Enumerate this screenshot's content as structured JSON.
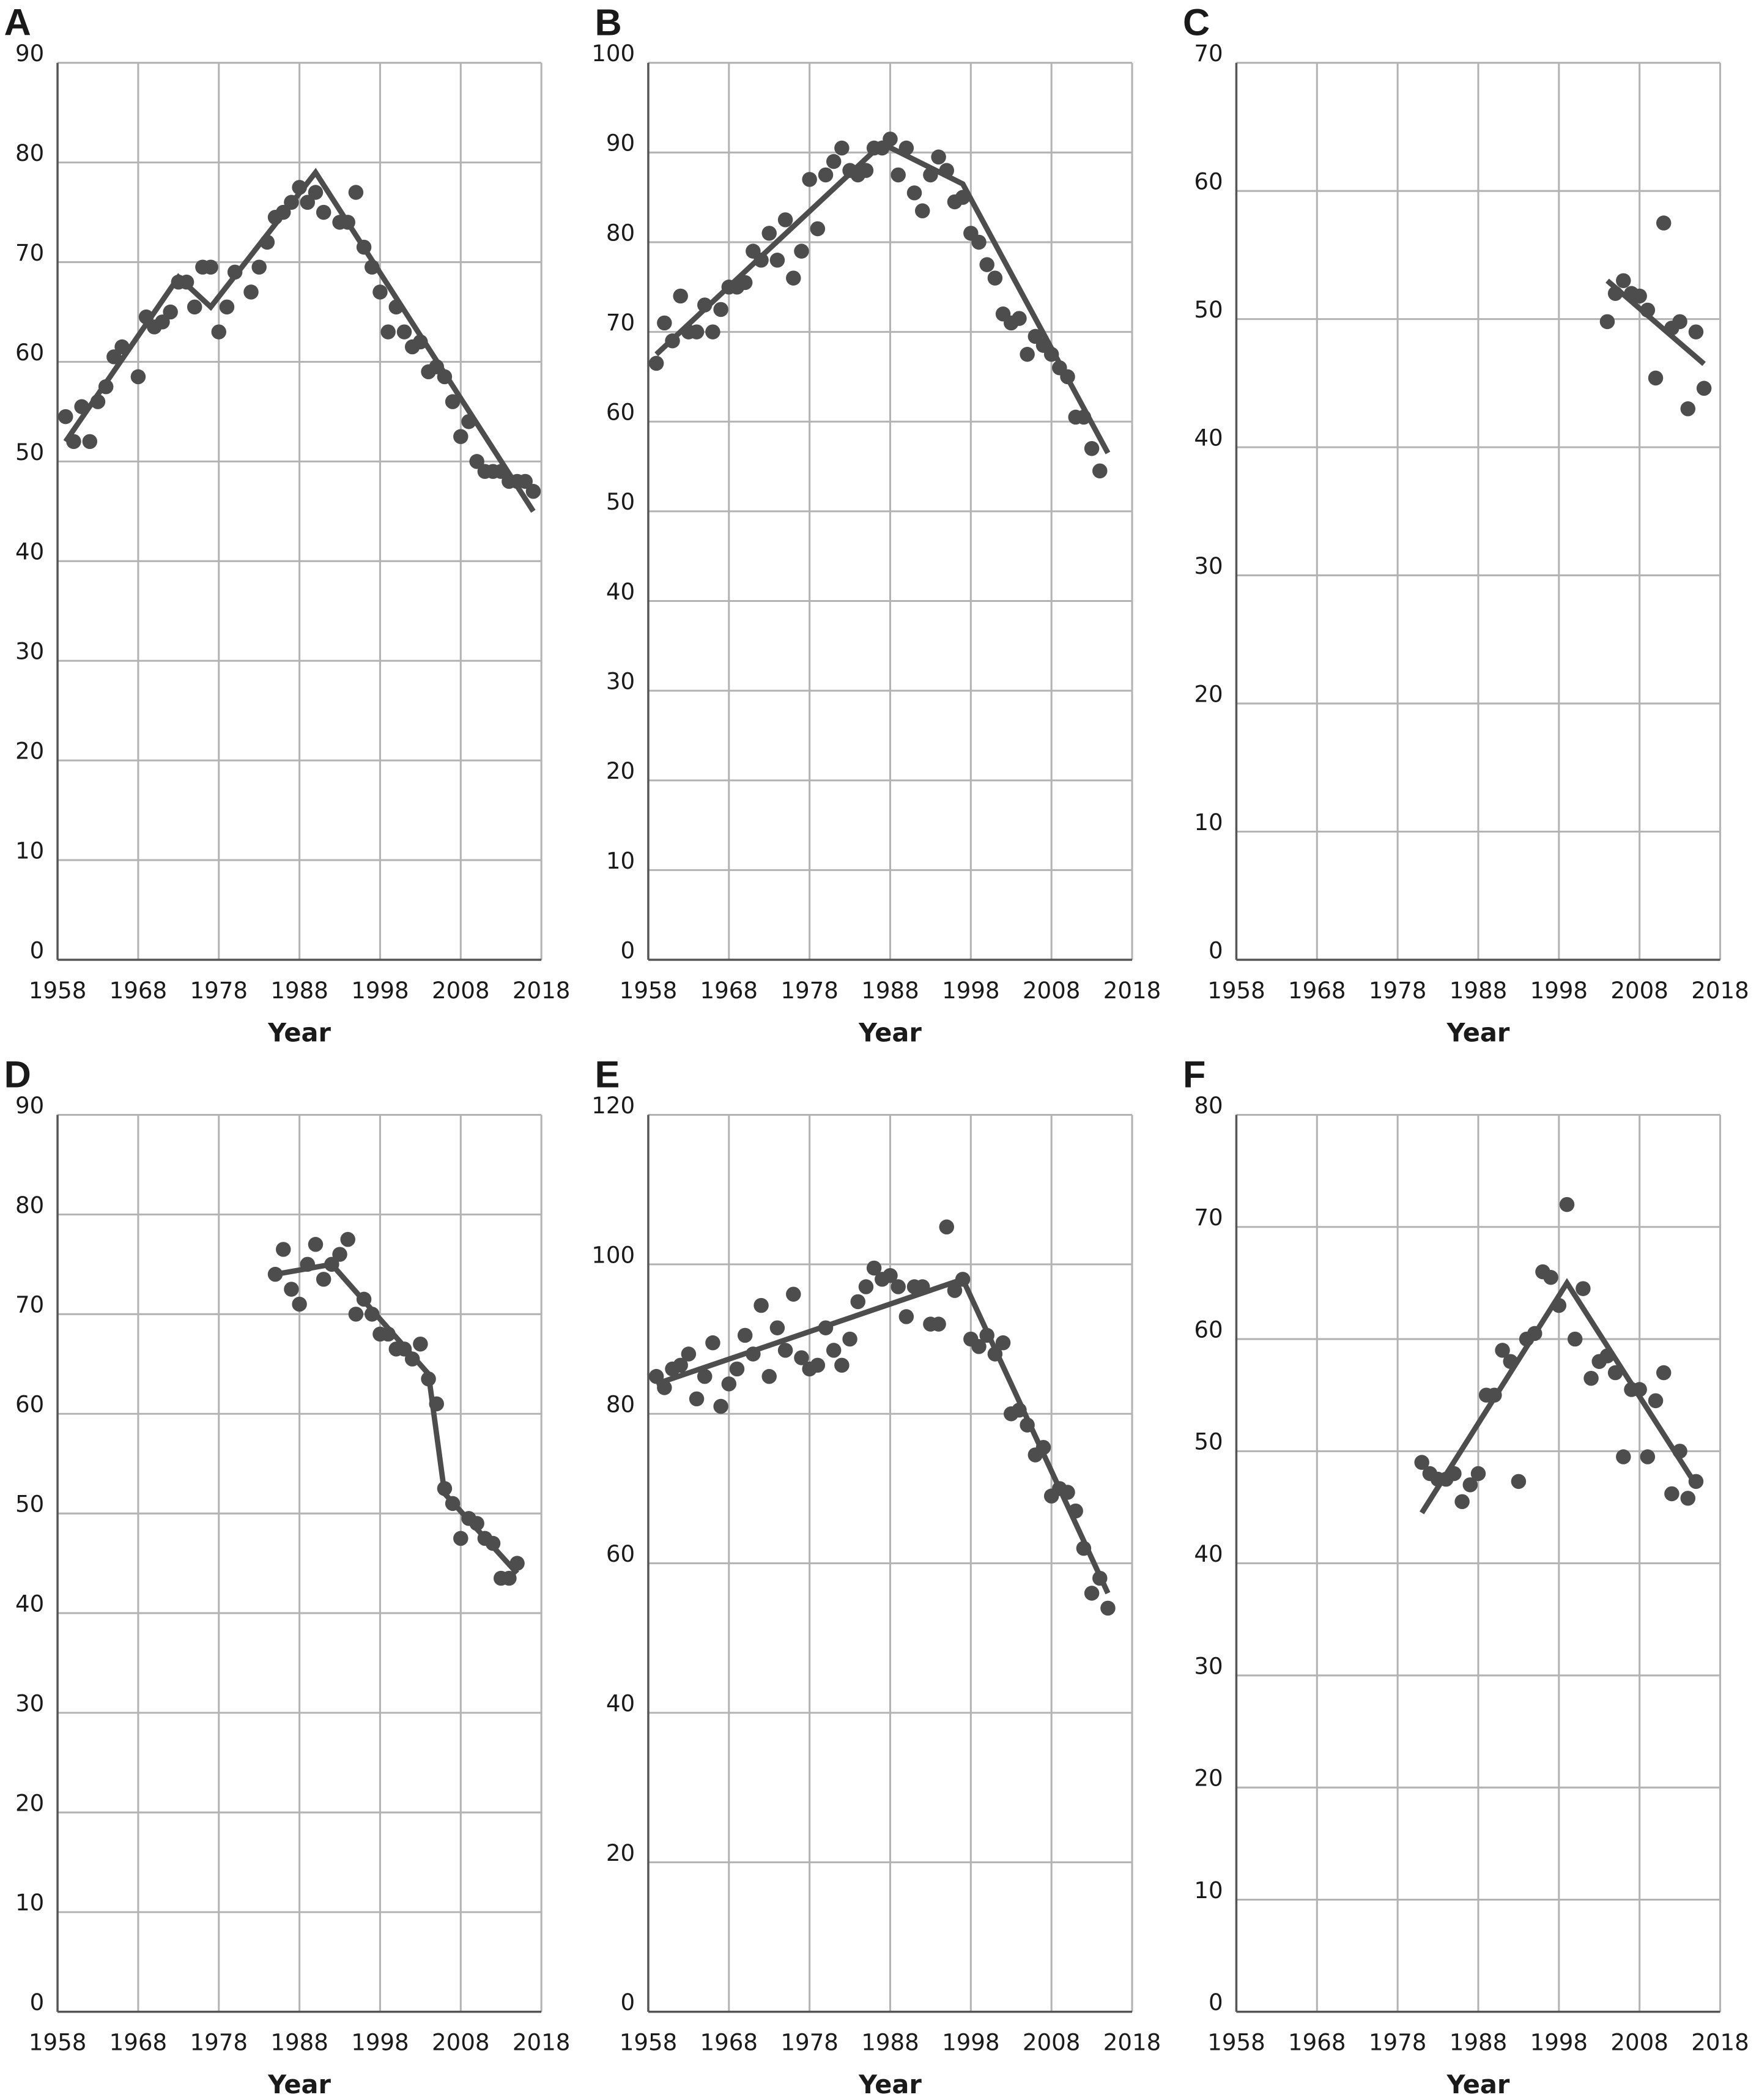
{
  "chart_data": [
    {
      "type": "scatter",
      "title": "A",
      "x_label": "Year",
      "xlim": [
        1958,
        2018
      ],
      "xticks": [
        1958,
        1968,
        1978,
        1988,
        1998,
        2008,
        2018
      ],
      "ylim": [
        0,
        90
      ],
      "yticks": [
        0,
        10,
        20,
        30,
        40,
        50,
        60,
        70,
        80,
        90
      ],
      "grid": true,
      "series": [
        {
          "mode": "markers",
          "color": "#4d4d4d",
          "x": [
            1959,
            1960,
            1961,
            1962,
            1963,
            1964,
            1965,
            1966,
            1968,
            1969,
            1970,
            1971,
            1972,
            1973,
            1974,
            1975,
            1976,
            1977,
            1978,
            1979,
            1980,
            1982,
            1983,
            1984,
            1985,
            1986,
            1987,
            1988,
            1989,
            1990,
            1991,
            1993,
            1994,
            1995,
            1996,
            1997,
            1998,
            1999,
            2000,
            2001,
            2002,
            2003,
            2004,
            2005,
            2006,
            2007,
            2008,
            2009,
            2010,
            2011,
            2012,
            2013,
            2014,
            2015,
            2016,
            2017
          ],
          "values": [
            54.5,
            52,
            55.5,
            52,
            56,
            57.5,
            60.5,
            61.5,
            58.5,
            64.5,
            63.5,
            64,
            65,
            68,
            68,
            65.5,
            69.5,
            69.5,
            63,
            65.5,
            69,
            67,
            69.5,
            72,
            74.5,
            75,
            76,
            77.5,
            76,
            77,
            75,
            74,
            74,
            77,
            71.5,
            69.5,
            67,
            63,
            65.5,
            63,
            61.5,
            62,
            59,
            59.5,
            58.5,
            56,
            52.5,
            54,
            50,
            49,
            49,
            49,
            48,
            48,
            48,
            47
          ]
        },
        {
          "mode": "line",
          "color": "#4d4d4d",
          "x": [
            1959,
            1973,
            1977,
            1990,
            2017
          ],
          "values": [
            52,
            68.5,
            65.5,
            79,
            45
          ]
        }
      ]
    },
    {
      "type": "scatter",
      "title": "B",
      "x_label": "Year",
      "xlim": [
        1958,
        2018
      ],
      "xticks": [
        1958,
        1968,
        1978,
        1988,
        1998,
        2008,
        2018
      ],
      "ylim": [
        0,
        100
      ],
      "yticks": [
        0,
        10,
        20,
        30,
        40,
        50,
        60,
        70,
        80,
        90,
        100
      ],
      "grid": true,
      "series": [
        {
          "mode": "markers",
          "color": "#4d4d4d",
          "x": [
            1959,
            1960,
            1961,
            1962,
            1963,
            1964,
            1965,
            1966,
            1967,
            1968,
            1969,
            1970,
            1971,
            1972,
            1973,
            1974,
            1975,
            1976,
            1977,
            1978,
            1979,
            1980,
            1981,
            1982,
            1983,
            1984,
            1985,
            1986,
            1987,
            1988,
            1989,
            1990,
            1991,
            1992,
            1993,
            1994,
            1995,
            1996,
            1997,
            1998,
            1999,
            2000,
            2001,
            2002,
            2003,
            2004,
            2005,
            2006,
            2007,
            2008,
            2009,
            2010,
            2011,
            2012,
            2013,
            2014
          ],
          "values": [
            66.5,
            71,
            69,
            74,
            70,
            70,
            73,
            70,
            72.5,
            75,
            75,
            75.5,
            79,
            78,
            81,
            78,
            82.5,
            76,
            79,
            87,
            81.5,
            87.5,
            89,
            90.5,
            88,
            87.5,
            88,
            90.5,
            90.5,
            91.5,
            87.5,
            90.5,
            85.5,
            83.5,
            87.5,
            89.5,
            88,
            84.5,
            85,
            81,
            80,
            77.5,
            76,
            72,
            71,
            71.5,
            67.5,
            69.5,
            68.5,
            67.5,
            66,
            65,
            60.5,
            60.5,
            57,
            54.5
          ]
        },
        {
          "mode": "line",
          "color": "#4d4d4d",
          "x": [
            1959,
            1987,
            1997,
            2015
          ],
          "values": [
            67.5,
            91,
            86.5,
            56.5
          ]
        }
      ]
    },
    {
      "type": "scatter",
      "title": "C",
      "x_label": "Year",
      "xlim": [
        1958,
        2018
      ],
      "xticks": [
        1958,
        1968,
        1978,
        1988,
        1998,
        2008,
        2018
      ],
      "ylim": [
        0,
        70
      ],
      "yticks": [
        0,
        10,
        20,
        30,
        40,
        50,
        60,
        70
      ],
      "grid": true,
      "series": [
        {
          "mode": "markers",
          "color": "#4d4d4d",
          "x": [
            2004,
            2005,
            2006,
            2007,
            2008,
            2009,
            2010,
            2011,
            2012,
            2013,
            2014,
            2015,
            2016
          ],
          "values": [
            49.8,
            52,
            53,
            52,
            51.8,
            50.7,
            45.4,
            57.5,
            49.3,
            49.8,
            43,
            49,
            44.6
          ]
        },
        {
          "mode": "line",
          "color": "#4d4d4d",
          "x": [
            2004,
            2016
          ],
          "values": [
            53,
            46.5
          ]
        }
      ]
    },
    {
      "type": "scatter",
      "title": "D",
      "x_label": "Year",
      "xlim": [
        1958,
        2018
      ],
      "xticks": [
        1958,
        1968,
        1978,
        1988,
        1998,
        2008,
        2018
      ],
      "ylim": [
        0,
        90
      ],
      "yticks": [
        0,
        10,
        20,
        30,
        40,
        50,
        60,
        70,
        80,
        90
      ],
      "grid": true,
      "series": [
        {
          "mode": "markers",
          "color": "#4d4d4d",
          "x": [
            1985,
            1986,
            1987,
            1988,
            1989,
            1990,
            1991,
            1992,
            1993,
            1994,
            1995,
            1996,
            1997,
            1998,
            1999,
            2000,
            2001,
            2002,
            2003,
            2004,
            2005,
            2006,
            2007,
            2008,
            2009,
            2010,
            2011,
            2012,
            2013,
            2014,
            2015
          ],
          "values": [
            74,
            76.5,
            72.5,
            71,
            75,
            77,
            73.5,
            75,
            76,
            77.5,
            70,
            71.5,
            70,
            68,
            68,
            66.5,
            66.5,
            65.5,
            67,
            63.5,
            61,
            52.5,
            51,
            47.5,
            49.5,
            49,
            47.5,
            47,
            43.5,
            43.5,
            45
          ]
        },
        {
          "mode": "line",
          "color": "#4d4d4d",
          "x": [
            1985,
            1992,
            2004,
            2006,
            2015
          ],
          "values": [
            74,
            75,
            64,
            52,
            44
          ]
        }
      ]
    },
    {
      "type": "scatter",
      "title": "E",
      "x_label": "Year",
      "xlim": [
        1958,
        2018
      ],
      "xticks": [
        1958,
        1968,
        1978,
        1988,
        1998,
        2008,
        2018
      ],
      "ylim": [
        0,
        120
      ],
      "yticks": [
        0,
        20,
        40,
        60,
        80,
        100,
        120
      ],
      "grid": true,
      "series": [
        {
          "mode": "markers",
          "color": "#4d4d4d",
          "x": [
            1959,
            1960,
            1961,
            1962,
            1963,
            1964,
            1965,
            1966,
            1967,
            1968,
            1969,
            1970,
            1971,
            1972,
            1973,
            1974,
            1975,
            1976,
            1977,
            1978,
            1979,
            1980,
            1981,
            1982,
            1983,
            1984,
            1985,
            1986,
            1987,
            1988,
            1989,
            1990,
            1991,
            1992,
            1993,
            1994,
            1995,
            1996,
            1997,
            1998,
            1999,
            2000,
            2001,
            2002,
            2003,
            2004,
            2005,
            2006,
            2007,
            2008,
            2009,
            2010,
            2011,
            2012,
            2013,
            2014,
            2015
          ],
          "values": [
            85,
            83.5,
            86,
            86.5,
            88,
            82,
            85,
            89.5,
            81,
            84,
            86,
            90.5,
            88,
            94.5,
            85,
            91.5,
            88.5,
            96,
            87.5,
            86,
            86.5,
            91.5,
            88.5,
            86.5,
            90,
            95,
            97,
            99.5,
            98,
            98.5,
            97,
            93,
            97,
            97,
            92,
            92,
            105,
            96.5,
            98,
            90,
            89,
            90.5,
            88,
            89.5,
            80,
            80.5,
            78.5,
            74.5,
            75.5,
            69,
            70,
            69.5,
            67,
            62,
            56,
            58,
            54
          ]
        },
        {
          "mode": "line",
          "color": "#4d4d4d",
          "x": [
            1959,
            1997,
            2015
          ],
          "values": [
            84,
            98,
            56
          ]
        }
      ]
    },
    {
      "type": "scatter",
      "title": "F",
      "x_label": "Year",
      "xlim": [
        1958,
        2018
      ],
      "xticks": [
        1958,
        1968,
        1978,
        1988,
        1998,
        2008,
        2018
      ],
      "ylim": [
        0,
        80
      ],
      "yticks": [
        0,
        10,
        20,
        30,
        40,
        50,
        60,
        70,
        80
      ],
      "grid": true,
      "series": [
        {
          "mode": "markers",
          "color": "#4d4d4d",
          "x": [
            1981,
            1982,
            1983,
            1984,
            1985,
            1986,
            1987,
            1988,
            1989,
            1990,
            1991,
            1992,
            1993,
            1994,
            1995,
            1996,
            1997,
            1998,
            1999,
            2000,
            2001,
            2002,
            2003,
            2004,
            2005,
            2006,
            2007,
            2008,
            2009,
            2010,
            2011,
            2012,
            2013,
            2014,
            2015
          ],
          "values": [
            49,
            48,
            47.5,
            47.5,
            48,
            45.5,
            47,
            48,
            55,
            55,
            59,
            58,
            47.3,
            60,
            60.5,
            66,
            65.5,
            63,
            72,
            60,
            64.5,
            56.5,
            58,
            58.5,
            57,
            49.5,
            55.5,
            55.5,
            49.5,
            54.5,
            57,
            46.2,
            50,
            45.8,
            47.3
          ]
        },
        {
          "mode": "line",
          "color": "#4d4d4d",
          "x": [
            1981,
            1999,
            2015
          ],
          "values": [
            44.5,
            65,
            47
          ]
        }
      ]
    }
  ]
}
